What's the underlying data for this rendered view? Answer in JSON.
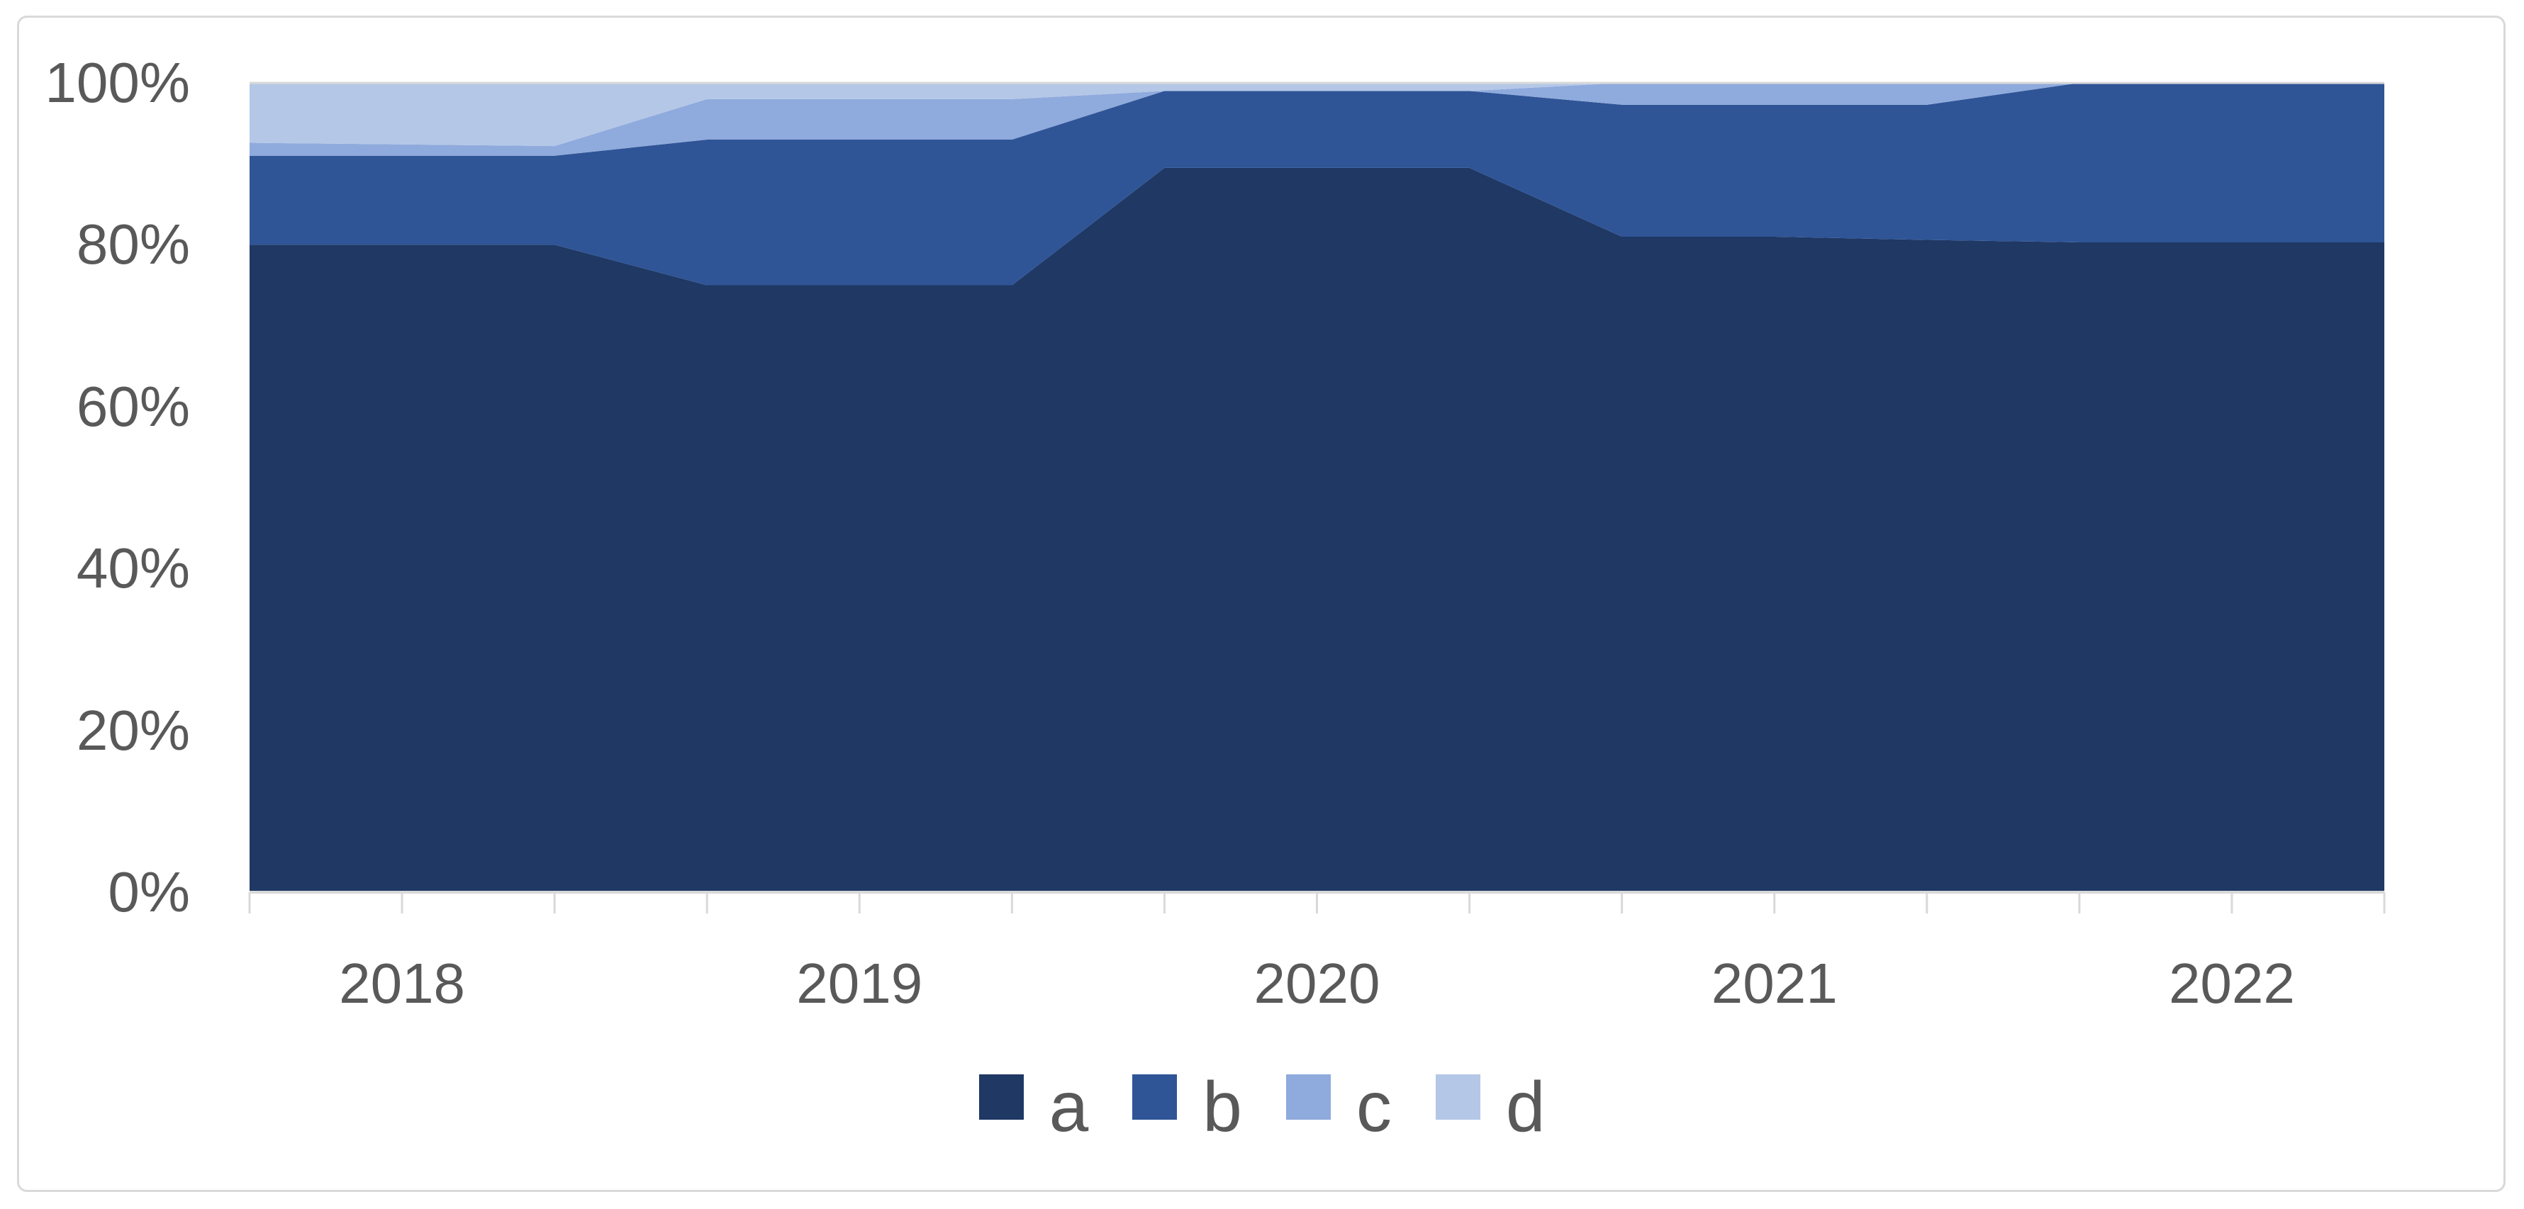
{
  "chart_data": {
    "type": "area",
    "stacking": "percent",
    "title": "",
    "xlabel": "",
    "ylabel": "",
    "x_year_labels": [
      "2018",
      "2019",
      "2020",
      "2021",
      "2022"
    ],
    "points_per_year": 3,
    "num_points": 15,
    "series": [
      {
        "name": "a",
        "color": "#1F3864",
        "values": [
          80,
          80,
          80,
          75,
          75,
          75,
          89.5,
          89.5,
          89.5,
          81,
          81,
          80.6,
          80.3,
          80.3,
          80.3
        ]
      },
      {
        "name": "b",
        "color": "#2F5597",
        "values": [
          11,
          11,
          11,
          18,
          18,
          18,
          9.5,
          9.5,
          9.5,
          16.3,
          16.3,
          16.7,
          19.7,
          19.7,
          19.7
        ]
      },
      {
        "name": "c",
        "color": "#8FAADC",
        "values": [
          1.6,
          1.4,
          1.2,
          5,
          5,
          5,
          0,
          0,
          0,
          2.7,
          2.7,
          2.7,
          0,
          0,
          0
        ]
      },
      {
        "name": "d",
        "color": "#B4C7E7",
        "values": [
          7.4,
          7.6,
          7.8,
          2,
          2,
          2,
          1,
          1,
          1,
          0,
          0,
          0,
          0,
          0,
          0
        ]
      }
    ],
    "y_ticks": [
      {
        "value": 0,
        "label": "0%"
      },
      {
        "value": 20,
        "label": "20%"
      },
      {
        "value": 40,
        "label": "40%"
      },
      {
        "value": 60,
        "label": "60%"
      },
      {
        "value": 80,
        "label": "80%"
      },
      {
        "value": 100,
        "label": "100%"
      }
    ],
    "ylim": [
      0,
      100
    ],
    "grid": "off",
    "legend_position": "bottom",
    "legend": [
      "a",
      "b",
      "c",
      "d"
    ],
    "axis_text_color": "#595959",
    "axis_line_color": "#D9D9D9",
    "border_color": "#D9D9D9"
  }
}
